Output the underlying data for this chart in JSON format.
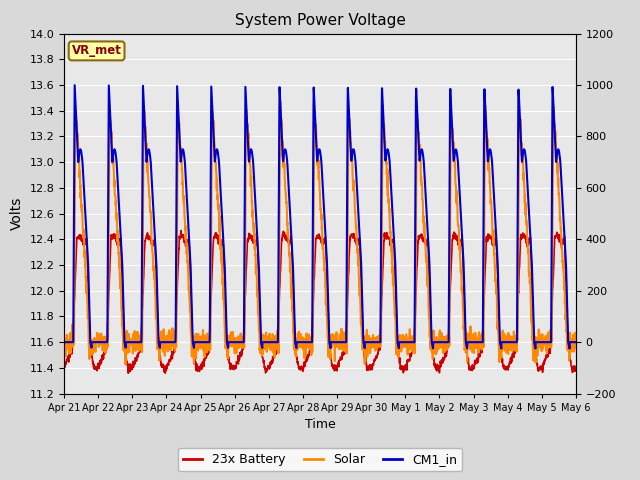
{
  "title": "System Power Voltage",
  "ylabel_left": "Volts",
  "xlabel": "Time",
  "ylim_left": [
    11.2,
    14.0
  ],
  "ylim_right": [
    -200,
    1200
  ],
  "yticks_left": [
    11.2,
    11.4,
    11.6,
    11.8,
    12.0,
    12.2,
    12.4,
    12.6,
    12.8,
    13.0,
    13.2,
    13.4,
    13.6,
    13.8,
    14.0
  ],
  "yticks_right": [
    -200,
    0,
    200,
    400,
    600,
    800,
    1000,
    1200
  ],
  "xtick_labels": [
    "Apr 21",
    "Apr 22",
    "Apr 23",
    "Apr 24",
    "Apr 25",
    "Apr 26",
    "Apr 27",
    "Apr 28",
    "Apr 29",
    "Apr 30",
    "May 1",
    "May 2",
    "May 3",
    "May 4",
    "May 5",
    "May 6"
  ],
  "fig_bg_color": "#d9d9d9",
  "plot_bg_color": "#e8e8e8",
  "legend_labels": [
    "23x Battery",
    "Solar",
    "CM1_in"
  ],
  "legend_colors": [
    "#cc0000",
    "#ff8800",
    "#0000cc"
  ],
  "vr_met_text": "VR_met",
  "line_colors": {
    "battery": "#cc0000",
    "solar": "#ff8800",
    "cm1": "#0000cc"
  },
  "line_widths": {
    "battery": 1.2,
    "solar": 1.5,
    "cm1": 1.5
  }
}
